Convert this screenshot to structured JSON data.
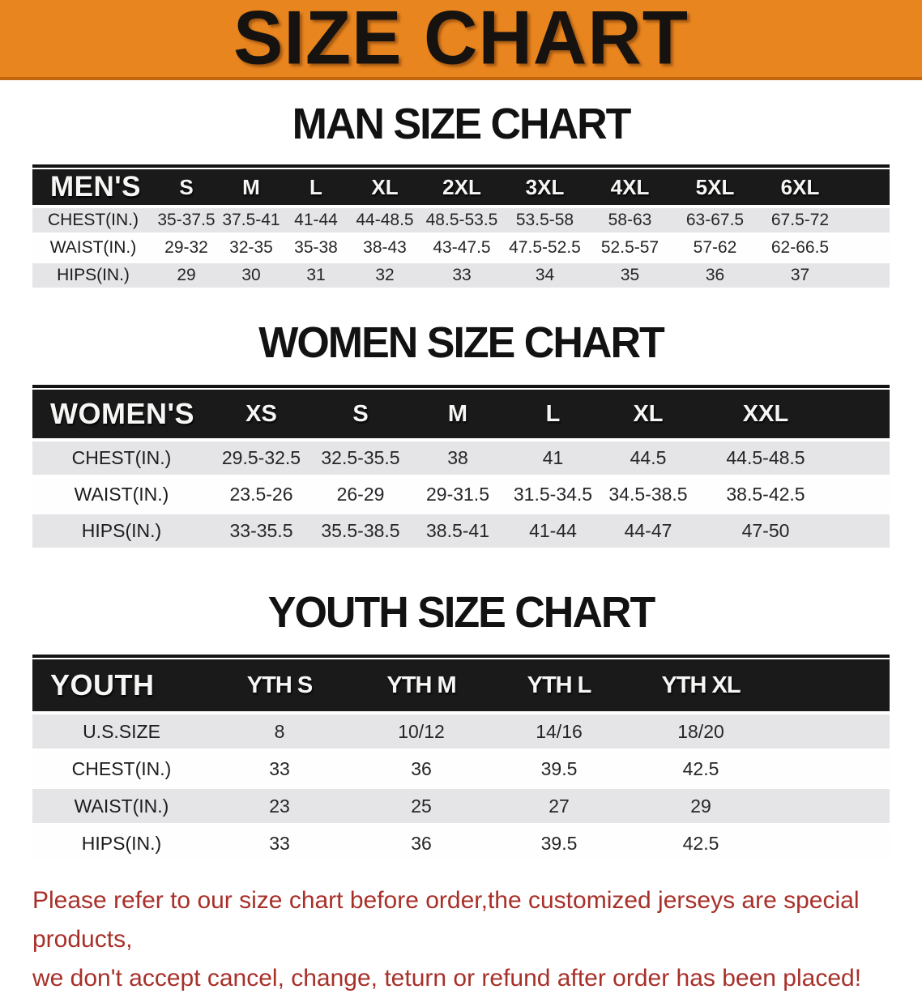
{
  "banner": {
    "title": "SIZE CHART",
    "bg_color": "#E8851F",
    "border_color": "#C1660E",
    "text_color": "#151210"
  },
  "sections": [
    {
      "heading": "MAN SIZE CHART",
      "table": {
        "header_label": "MEN'S",
        "columns": [
          "S",
          "M",
          "L",
          "XL",
          "2XL",
          "3XL",
          "4XL",
          "5XL",
          "6XL"
        ],
        "rows": [
          {
            "label": "CHEST(IN.)",
            "values": [
              "35-37.5",
              "37.5-41",
              "41-44",
              "44-48.5",
              "48.5-53.5",
              "53.5-58",
              "58-63",
              "63-67.5",
              "67.5-72"
            ]
          },
          {
            "label": "WAIST(IN.)",
            "values": [
              "29-32",
              "32-35",
              "35-38",
              "38-43",
              "43-47.5",
              "47.5-52.5",
              "52.5-57",
              "57-62",
              "62-66.5"
            ]
          },
          {
            "label": "HIPS(IN.)",
            "values": [
              "29",
              "30",
              "31",
              "32",
              "33",
              "34",
              "35",
              "36",
              "37"
            ]
          }
        ]
      }
    },
    {
      "heading": "WOMEN SIZE CHART",
      "table": {
        "header_label": "WOMEN'S",
        "columns": [
          "XS",
          "S",
          "M",
          "L",
          "XL",
          "XXL"
        ],
        "rows": [
          {
            "label": "CHEST(IN.)",
            "values": [
              "29.5-32.5",
              "32.5-35.5",
              "38",
              "41",
              "44.5",
              "44.5-48.5"
            ]
          },
          {
            "label": "WAIST(IN.)",
            "values": [
              "23.5-26",
              "26-29",
              "29-31.5",
              "31.5-34.5",
              "34.5-38.5",
              "38.5-42.5"
            ]
          },
          {
            "label": "HIPS(IN.)",
            "values": [
              "33-35.5",
              "35.5-38.5",
              "38.5-41",
              "41-44",
              "44-47",
              "47-50"
            ]
          }
        ]
      }
    },
    {
      "heading": "YOUTH SIZE CHART",
      "table": {
        "header_label": "YOUTH",
        "columns": [
          "YTH S",
          "YTH M",
          "YTH L",
          "YTH XL"
        ],
        "rows": [
          {
            "label": "U.S.SIZE",
            "values": [
              "8",
              "10/12",
              "14/16",
              "18/20"
            ]
          },
          {
            "label": "CHEST(IN.)",
            "values": [
              "33",
              "36",
              "39.5",
              "42.5"
            ]
          },
          {
            "label": "WAIST(IN.)",
            "values": [
              "23",
              "25",
              "27",
              "29"
            ]
          },
          {
            "label": "HIPS(IN.)",
            "values": [
              "33",
              "36",
              "39.5",
              "42.5"
            ]
          }
        ]
      }
    }
  ],
  "table_colors": {
    "header_bg": "#1A1A1A",
    "header_text": "#F6F6F4",
    "row_gray": "#E5E5E7",
    "row_white": "#FEFEFE"
  },
  "footer": {
    "line1": "Please refer to our size chart before order,the customized jerseys are special products,",
    "line2": "we don't accept cancel, change, teturn or refund after order has been placed!",
    "text_color": "#A8302A"
  }
}
